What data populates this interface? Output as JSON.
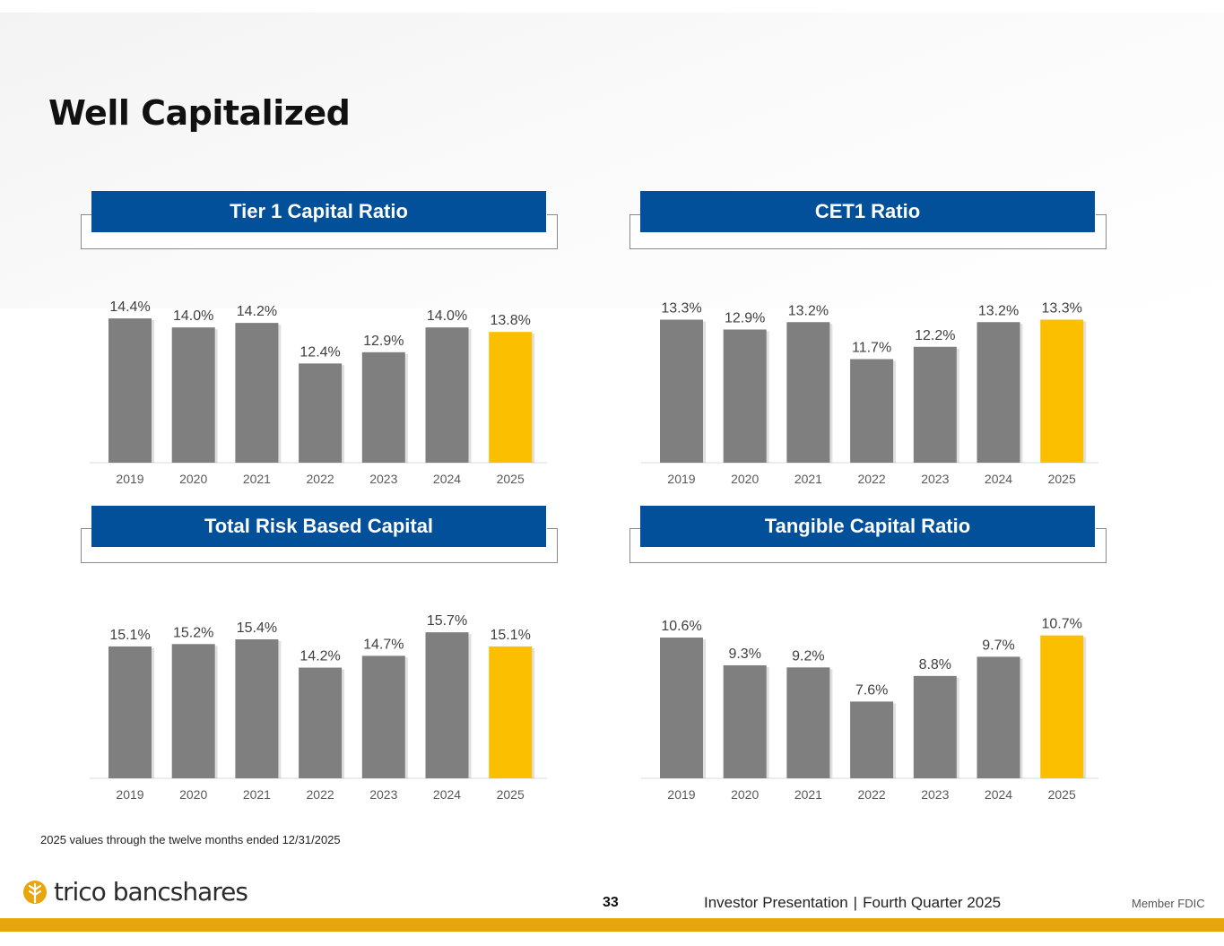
{
  "title": "Well Capitalized",
  "footnote": "2025 values through the twelve months ended 12/31/2025",
  "footer": {
    "logo_text": "trico bancshares",
    "page_number": "33",
    "presentation": "Investor Presentation",
    "separator": "|",
    "period": "Fourth Quarter 2025",
    "member": "Member FDIC"
  },
  "colors": {
    "header_blue": "#024f9a",
    "bar_gray": "#7f7f7f",
    "bar_highlight": "#fbbf00",
    "footer_bar": "#e8a50c"
  },
  "chart_data": [
    {
      "type": "bar",
      "title": "Tier 1 Capital Ratio",
      "categories": [
        "2019",
        "2020",
        "2021",
        "2022",
        "2023",
        "2024",
        "2025"
      ],
      "values": [
        14.4,
        14.0,
        14.2,
        12.4,
        12.9,
        14.0,
        13.8
      ],
      "labels": [
        "14.4%",
        "14.0%",
        "14.2%",
        "12.4%",
        "12.9%",
        "14.0%",
        "13.8%"
      ],
      "highlight_index": 6,
      "ylim": [
        8,
        15
      ]
    },
    {
      "type": "bar",
      "title": "CET1 Ratio",
      "categories": [
        "2019",
        "2020",
        "2021",
        "2022",
        "2023",
        "2024",
        "2025"
      ],
      "values": [
        13.3,
        12.9,
        13.2,
        11.7,
        12.2,
        13.2,
        13.3
      ],
      "labels": [
        "13.3%",
        "12.9%",
        "13.2%",
        "11.7%",
        "12.2%",
        "13.2%",
        "13.3%"
      ],
      "highlight_index": 6,
      "ylim": [
        7.5,
        13.9
      ]
    },
    {
      "type": "bar",
      "title": "Total Risk Based Capital",
      "categories": [
        "2019",
        "2020",
        "2021",
        "2022",
        "2023",
        "2024",
        "2025"
      ],
      "values": [
        15.1,
        15.2,
        15.4,
        14.2,
        14.7,
        15.7,
        15.1
      ],
      "labels": [
        "15.1%",
        "15.2%",
        "15.4%",
        "14.2%",
        "14.7%",
        "15.7%",
        "15.1%"
      ],
      "highlight_index": 6,
      "ylim": [
        9.5,
        16.2
      ]
    },
    {
      "type": "bar",
      "title": "Tangible Capital Ratio",
      "categories": [
        "2019",
        "2020",
        "2021",
        "2022",
        "2023",
        "2024",
        "2025"
      ],
      "values": [
        10.6,
        9.3,
        9.2,
        7.6,
        8.8,
        9.7,
        10.7
      ],
      "labels": [
        "10.6%",
        "9.3%",
        "9.2%",
        "7.6%",
        "8.8%",
        "9.7%",
        "10.7%"
      ],
      "highlight_index": 6,
      "ylim": [
        4.0,
        11.4
      ]
    }
  ]
}
